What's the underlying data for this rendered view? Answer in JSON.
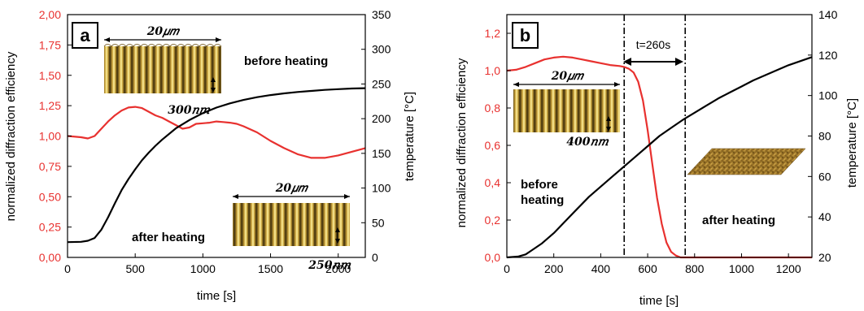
{
  "colors": {
    "diffraction": "#e8312f",
    "temperature": "#000000",
    "frame": "#000000"
  },
  "chart_data": [
    {
      "type": "line",
      "panel_label": "a",
      "xlabel": "time [s]",
      "ylabel_left": "normalized diffraction efficiency",
      "ylabel_right": "temperature [°C]",
      "xlim": [
        0,
        2200
      ],
      "ylim_left": [
        0,
        2
      ],
      "ylim_right": [
        0,
        350
      ],
      "x_ticks": [
        0,
        500,
        1000,
        1500,
        2000
      ],
      "y_left_ticks": [
        0,
        0.25,
        0.5,
        0.75,
        1.0,
        1.25,
        1.5,
        1.75,
        2.0
      ],
      "y_left_tick_labels": [
        "0,00",
        "0,25",
        "0,50",
        "0,75",
        "1,00",
        "1,25",
        "1,50",
        "1,75",
        "2,00"
      ],
      "y_right_ticks": [
        0,
        50,
        100,
        150,
        200,
        250,
        300,
        350
      ],
      "y_right_tick_labels": [
        "0",
        "50",
        "100",
        "150",
        "200",
        "250",
        "300",
        "350"
      ],
      "series": [
        {
          "axis": "left",
          "color": "#e8312f",
          "x": [
            0,
            100,
            150,
            200,
            250,
            300,
            350,
            400,
            450,
            500,
            550,
            600,
            650,
            700,
            750,
            800,
            850,
            900,
            950,
            1000,
            1050,
            1100,
            1150,
            1200,
            1250,
            1300,
            1400,
            1500,
            1600,
            1700,
            1800,
            1900,
            2000,
            2100,
            2200
          ],
          "y": [
            1.0,
            0.99,
            0.98,
            1.0,
            1.06,
            1.12,
            1.17,
            1.21,
            1.235,
            1.24,
            1.23,
            1.2,
            1.17,
            1.15,
            1.12,
            1.09,
            1.06,
            1.07,
            1.1,
            1.105,
            1.11,
            1.12,
            1.115,
            1.11,
            1.1,
            1.08,
            1.03,
            0.96,
            0.9,
            0.85,
            0.82,
            0.82,
            0.84,
            0.87,
            0.9
          ]
        },
        {
          "axis": "right",
          "color": "#000000",
          "x": [
            0,
            100,
            150,
            200,
            250,
            300,
            350,
            400,
            450,
            500,
            550,
            600,
            650,
            700,
            800,
            900,
            1000,
            1100,
            1200,
            1300,
            1400,
            1500,
            1600,
            1700,
            1800,
            1900,
            2000,
            2100,
            2200
          ],
          "y": [
            22,
            22.5,
            24,
            28,
            40,
            58,
            78,
            97,
            113,
            127,
            140,
            151,
            161,
            170,
            186,
            198,
            208,
            216,
            222,
            227,
            231,
            234,
            236.5,
            238.5,
            240,
            241.5,
            242.5,
            243.5,
            244
          ]
        }
      ],
      "annotations": [
        {
          "text": "before heating"
        },
        {
          "text": "after heating"
        }
      ],
      "inset_labels": [
        "20𝜇𝑚",
        "300𝑛𝑚",
        "20𝜇𝑚",
        "250𝑛𝑚"
      ]
    },
    {
      "type": "line",
      "panel_label": "b",
      "xlabel": "time [s]",
      "ylabel_left": "normalized diffraction efficiency",
      "ylabel_right": "temperature [°C]",
      "xlim": [
        0,
        1300
      ],
      "ylim_left": [
        0,
        1.3
      ],
      "ylim_right": [
        20,
        140
      ],
      "x_ticks": [
        0,
        200,
        400,
        600,
        800,
        1000,
        1200
      ],
      "y_left_ticks": [
        0,
        0.2,
        0.4,
        0.6,
        0.8,
        1.0,
        1.2
      ],
      "y_left_tick_labels": [
        "0,0",
        "0,2",
        "0,4",
        "0,6",
        "0,8",
        "1,0",
        "1,2"
      ],
      "y_right_ticks": [
        20,
        40,
        60,
        80,
        100,
        120,
        140
      ],
      "y_right_tick_labels": [
        "20",
        "40",
        "60",
        "80",
        "100",
        "120",
        "140"
      ],
      "vlines": [
        500,
        760
      ],
      "interval_label": "t=260s",
      "series": [
        {
          "axis": "left",
          "color": "#e8312f",
          "x": [
            0,
            40,
            80,
            120,
            160,
            200,
            240,
            280,
            320,
            360,
            400,
            440,
            480,
            500,
            520,
            540,
            560,
            580,
            600,
            620,
            640,
            660,
            680,
            700,
            720,
            740,
            760,
            800,
            900,
            1000,
            1100,
            1200,
            1300
          ],
          "y": [
            1.0,
            1.005,
            1.02,
            1.04,
            1.06,
            1.07,
            1.075,
            1.07,
            1.06,
            1.05,
            1.04,
            1.03,
            1.025,
            1.02,
            1.01,
            0.99,
            0.94,
            0.84,
            0.68,
            0.5,
            0.32,
            0.18,
            0.08,
            0.03,
            0.01,
            0.0,
            0.0,
            0.0,
            0.0,
            0.0,
            0.0,
            0.0,
            0.0
          ]
        },
        {
          "axis": "right",
          "color": "#000000",
          "x": [
            0,
            50,
            80,
            100,
            150,
            200,
            250,
            300,
            350,
            400,
            450,
            500,
            550,
            600,
            650,
            700,
            750,
            800,
            850,
            900,
            950,
            1000,
            1050,
            1100,
            1150,
            1200,
            1250,
            1300
          ],
          "y": [
            20,
            20.5,
            21.5,
            23,
            27,
            32,
            38,
            44,
            50,
            55,
            60,
            65,
            70,
            75,
            80,
            84,
            88,
            91.5,
            95,
            98.5,
            101.5,
            104.5,
            107.5,
            110,
            112.5,
            115,
            117,
            119
          ]
        }
      ],
      "annotations": [
        {
          "text": "before heating",
          "lines": [
            "before",
            "heating"
          ]
        },
        {
          "text": "after heating"
        }
      ],
      "inset_labels": [
        "20𝜇𝑚",
        "400𝑛𝑚"
      ]
    }
  ]
}
